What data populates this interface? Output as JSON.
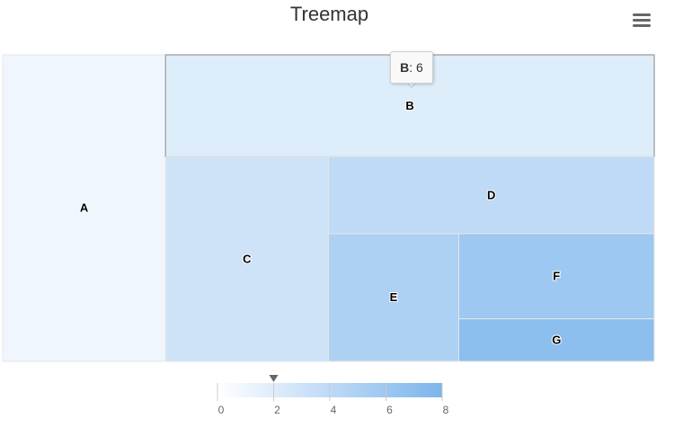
{
  "chart_data": {
    "type": "treemap",
    "title": "Treemap",
    "points": [
      {
        "name": "A",
        "value": 6,
        "colorValue": 1
      },
      {
        "name": "B",
        "value": 6,
        "colorValue": 2
      },
      {
        "name": "C",
        "value": 4,
        "colorValue": 3
      },
      {
        "name": "D",
        "value": 3,
        "colorValue": 4
      },
      {
        "name": "E",
        "value": 2,
        "colorValue": 5
      },
      {
        "name": "F",
        "value": 2,
        "colorValue": 6
      },
      {
        "name": "G",
        "value": 1,
        "colorValue": 7
      }
    ],
    "colorAxis": {
      "min": 0,
      "max": 8,
      "ticks": [
        "0",
        "2",
        "4",
        "6",
        "8"
      ],
      "minColor": "#FFFFFF",
      "maxColor": "#7cb5ec",
      "marker_value": 2
    },
    "tooltip": {
      "point": "B",
      "value": "6"
    },
    "hovered": "B"
  },
  "toolbar": {
    "menu_icon": "hamburger-menu-icon"
  }
}
